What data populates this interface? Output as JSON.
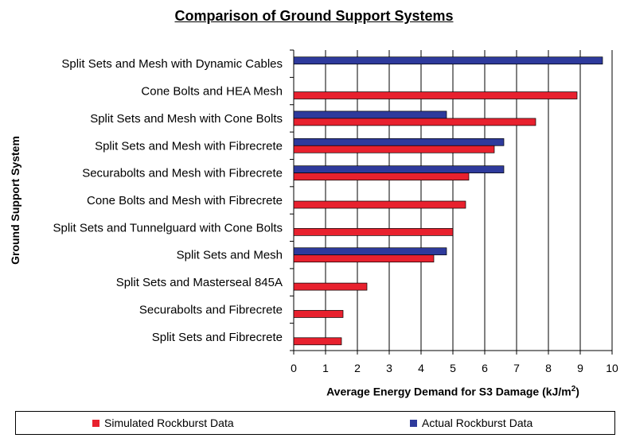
{
  "chart_data": {
    "type": "bar",
    "orientation": "horizontal",
    "title": "Comparison of Ground Support Systems",
    "xlabel": "Average Energy Demand for S3 Damage (kJ/m",
    "xlabel_sup": "2",
    "xlabel_close": ")",
    "ylabel": "Ground Support System",
    "xlim": [
      0,
      10
    ],
    "xticks": [
      "0",
      "1",
      "2",
      "3",
      "4",
      "5",
      "6",
      "7",
      "8",
      "9",
      "10"
    ],
    "grid": "vertical",
    "legend_position": "bottom",
    "categories": [
      "Split Sets and Mesh with Dynamic Cables",
      "Cone Bolts and HEA Mesh",
      "Split Sets and Mesh with Cone Bolts",
      "Split Sets and Mesh with Fibrecrete",
      "Securabolts and Mesh with Fibrecrete",
      "Cone Bolts and Mesh with Fibrecrete",
      "Split Sets and Tunnelguard with Cone Bolts",
      "Split Sets and Mesh",
      "Split Sets and Masterseal 845A",
      "Securabolts and Fibrecrete",
      "Split Sets and Fibrecrete"
    ],
    "series": [
      {
        "name": "Actual Rockburst Data",
        "color": "#2e3a9c",
        "values": [
          9.7,
          null,
          4.8,
          6.6,
          6.6,
          null,
          null,
          4.8,
          null,
          null,
          null
        ]
      },
      {
        "name": "Simulated Rockburst Data",
        "color": "#e8212e",
        "values": [
          null,
          8.9,
          7.6,
          6.3,
          5.5,
          5.4,
          5.0,
          4.4,
          2.3,
          1.55,
          1.5
        ]
      }
    ]
  },
  "legend": {
    "items": [
      {
        "label": "Simulated Rockburst Data",
        "color": "#e8212e"
      },
      {
        "label": "Actual Rockburst Data",
        "color": "#2e3a9c"
      }
    ]
  }
}
